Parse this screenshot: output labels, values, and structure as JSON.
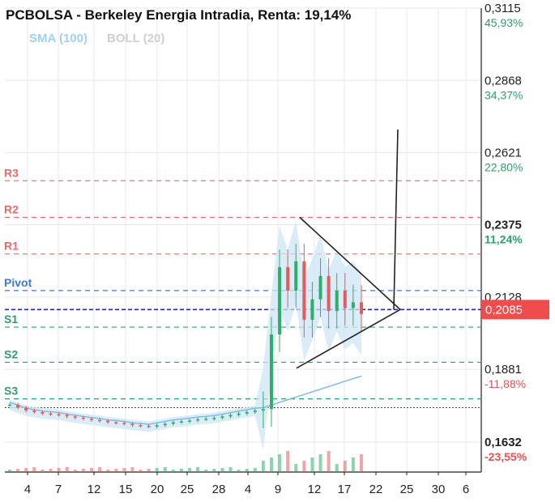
{
  "header": {
    "title": "PCBOLSA - Berkeley Energia Intradia, Renta: 19,14%",
    "indicators": [
      {
        "label": "SMA (100)",
        "color": "#9fd2f0"
      },
      {
        "label": "BOLL (20)",
        "color": "#cfcfcf"
      }
    ]
  },
  "chart_data": {
    "type": "line",
    "style": "candlestick with volume bars",
    "ylim": [
      0.153,
      0.3115
    ],
    "grid": true,
    "last_price": {
      "label": "0,2085",
      "value": 0.2085,
      "color": "#ef4d4d"
    },
    "previous_close": 0.175,
    "y_axis_labels": [
      {
        "price": "0,3115",
        "pct": "45,93%",
        "value": 0.3115,
        "bold": false
      },
      {
        "price": "0,2868",
        "pct": "34,37%",
        "value": 0.2868,
        "bold": false
      },
      {
        "price": "0,2621",
        "pct": "22,80%",
        "value": 0.2621,
        "bold": false
      },
      {
        "price": "0,2375",
        "pct": "11,24%",
        "value": 0.2375,
        "bold": true
      },
      {
        "price": "0,2128",
        "pct": "",
        "value": 0.2128,
        "bold": false
      },
      {
        "price": "0,1881",
        "pct": "-11,88%",
        "value": 0.1881,
        "bold": false
      },
      {
        "price": "0,1632",
        "pct": "-23,55%",
        "value": 0.1632,
        "bold": true
      }
    ],
    "pivot_levels": [
      {
        "label": "R3",
        "value": 0.2525,
        "color": "#e86b6b"
      },
      {
        "label": "R2",
        "value": 0.24,
        "color": "#e86b6b"
      },
      {
        "label": "R1",
        "value": 0.2275,
        "color": "#e86b6b"
      },
      {
        "label": "Pivot",
        "value": 0.215,
        "color": "#3a7bd5"
      },
      {
        "label": "S1",
        "value": 0.2025,
        "color": "#2e9e6e"
      },
      {
        "label": "S2",
        "value": 0.1905,
        "color": "#2e9e6e"
      },
      {
        "label": "S3",
        "value": 0.178,
        "color": "#2e9e6e"
      }
    ],
    "x_ticks": [
      "4",
      "7",
      "12",
      "15",
      "20",
      "25",
      "28",
      "4",
      "9",
      "12",
      "17",
      "22",
      "25",
      "30",
      "6"
    ],
    "price_series": [
      0.176,
      0.175,
      0.174,
      0.1735,
      0.173,
      0.1728,
      0.1725,
      0.172,
      0.1716,
      0.1712,
      0.1708,
      0.1705,
      0.17,
      0.1698,
      0.1695,
      0.169,
      0.1688,
      0.1685,
      0.169,
      0.1695,
      0.17,
      0.1703,
      0.1706,
      0.171,
      0.1712,
      0.1715,
      0.172,
      0.1725,
      0.173,
      0.1735,
      0.174,
      0.1745,
      0.2,
      0.223,
      0.215,
      0.225,
      0.205,
      0.212,
      0.22,
      0.208,
      0.215,
      0.209,
      0.211,
      0.207
    ]
  }
}
